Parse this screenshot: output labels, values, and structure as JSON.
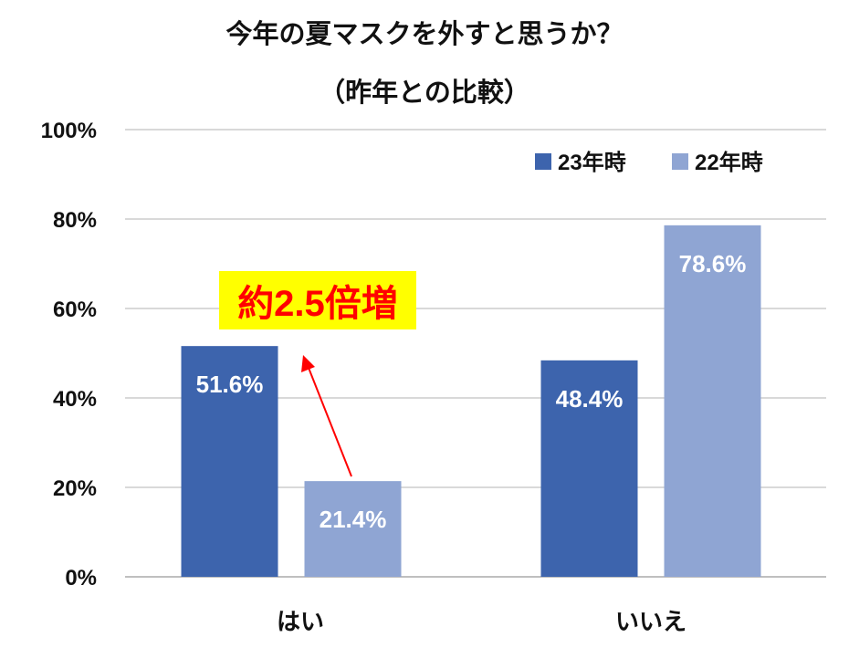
{
  "chart_data": {
    "type": "bar",
    "title": "今年の夏マスクを外すと思うか？",
    "subtitle": "（昨年との比較）",
    "categories": [
      "はい",
      "いいえ"
    ],
    "series": [
      {
        "name": "23年時",
        "values": [
          51.6,
          48.4
        ],
        "color": "#3D64AD"
      },
      {
        "name": "22年時",
        "values": [
          21.4,
          78.6
        ],
        "color": "#8FA5D3"
      }
    ],
    "data_labels": [
      [
        "51.6%",
        "48.4%"
      ],
      [
        "21.4%",
        "78.6%"
      ]
    ],
    "ylim": [
      0,
      100
    ],
    "yticks": [
      "0%",
      "20%",
      "40%",
      "60%",
      "80%",
      "100%"
    ],
    "grid": true,
    "legend_position": "top-right",
    "annotation": {
      "text": "約2.5倍増",
      "text_color": "#FF0000",
      "background": "#FFFF00",
      "arrow_color": "#FF0000"
    }
  }
}
